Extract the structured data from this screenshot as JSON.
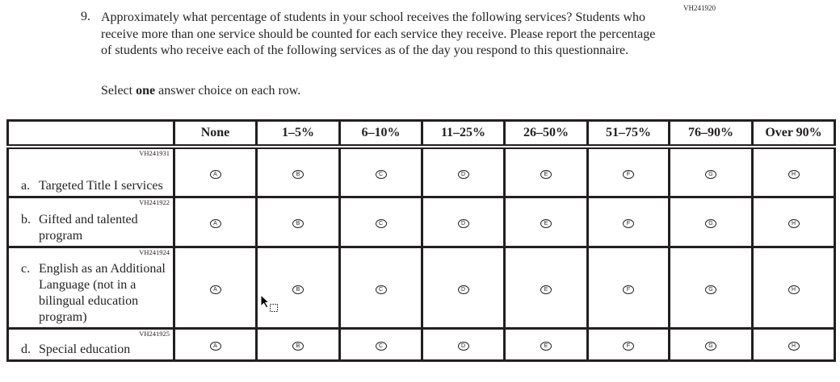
{
  "question": {
    "id": "VH241920",
    "number": "9.",
    "text": "Approximately what percentage of students in your school receives the following services? Students who receive more than one service should be counted for each service they receive. Please report the percentage of students who receive each of the following services as of the day you respond to this questionnaire.",
    "instruction_pre": "Select ",
    "instruction_bold": "one",
    "instruction_post": " answer choice on each row."
  },
  "columns": [
    "None",
    "1–5%",
    "6–10%",
    "11–25%",
    "26–50%",
    "51–75%",
    "76–90%",
    "Over 90%"
  ],
  "letters": [
    "A",
    "B",
    "C",
    "D",
    "E",
    "F",
    "G",
    "H"
  ],
  "rows": [
    {
      "code": "VH241931",
      "letter": "a.",
      "label": "Targeted Title I services"
    },
    {
      "code": "VH241922",
      "letter": "b.",
      "label": "Gifted and talented program"
    },
    {
      "code": "VH241924",
      "letter": "c.",
      "label": "English as an Additional Language (not in a bilingual education program)"
    },
    {
      "code": "VH241925",
      "letter": "d.",
      "label": "Special education"
    }
  ]
}
